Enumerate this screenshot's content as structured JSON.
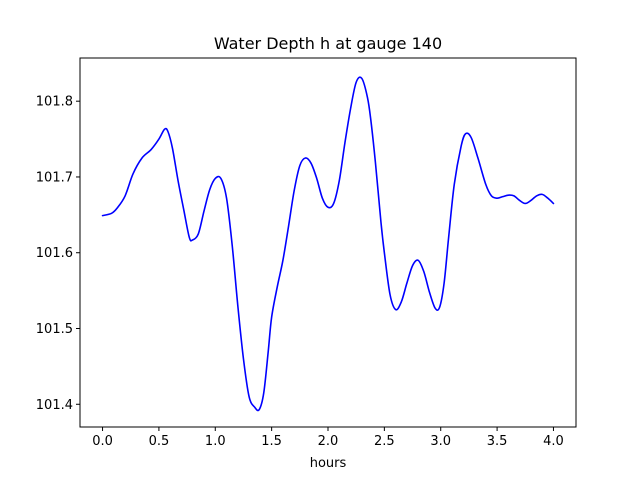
{
  "chart_data": {
    "type": "line",
    "title": "Water Depth h at gauge 140",
    "xlabel": "hours",
    "ylabel": "",
    "xlim": [
      -0.2,
      4.2
    ],
    "ylim": [
      101.37,
      101.857
    ],
    "xticks": [
      0.0,
      0.5,
      1.0,
      1.5,
      2.0,
      2.5,
      3.0,
      3.5,
      4.0
    ],
    "xtick_labels": [
      "0.0",
      "0.5",
      "1.0",
      "1.5",
      "2.0",
      "2.5",
      "3.0",
      "3.5",
      "4.0"
    ],
    "yticks": [
      101.4,
      101.5,
      101.6,
      101.7,
      101.8
    ],
    "ytick_labels": [
      "101.4",
      "101.5",
      "101.6",
      "101.7",
      "101.8"
    ],
    "grid": false,
    "line_color": "#0000ff",
    "series": [
      {
        "x": [
          0.0,
          0.08,
          0.13,
          0.2,
          0.27,
          0.35,
          0.43,
          0.5,
          0.55,
          0.58,
          0.62,
          0.67,
          0.72,
          0.77,
          0.8,
          0.85,
          0.9,
          0.95,
          1.0,
          1.05,
          1.1,
          1.15,
          1.2,
          1.25,
          1.3,
          1.35,
          1.39,
          1.43,
          1.47,
          1.5,
          1.55,
          1.6,
          1.65,
          1.7,
          1.75,
          1.8,
          1.85,
          1.9,
          1.95,
          2.0,
          2.05,
          2.1,
          2.15,
          2.2,
          2.25,
          2.3,
          2.35,
          2.38,
          2.42,
          2.47,
          2.5,
          2.55,
          2.6,
          2.65,
          2.7,
          2.75,
          2.8,
          2.85,
          2.9,
          2.95,
          2.99,
          3.03,
          3.07,
          3.12,
          3.18,
          3.22,
          3.27,
          3.33,
          3.4,
          3.45,
          3.5,
          3.55,
          3.6,
          3.65,
          3.7,
          3.75,
          3.8,
          3.85,
          3.9,
          3.95,
          4.0
        ],
        "y": [
          101.649,
          101.652,
          101.659,
          101.675,
          101.704,
          101.725,
          101.736,
          101.75,
          101.763,
          101.76,
          101.738,
          101.695,
          101.657,
          101.62,
          101.617,
          101.625,
          101.655,
          101.683,
          101.698,
          101.698,
          101.672,
          101.61,
          101.53,
          101.46,
          101.41,
          101.396,
          101.393,
          101.415,
          101.47,
          101.515,
          101.555,
          101.59,
          101.635,
          101.682,
          101.715,
          101.725,
          101.718,
          101.698,
          101.672,
          101.66,
          101.665,
          101.695,
          101.745,
          101.79,
          101.825,
          101.83,
          101.805,
          101.775,
          101.72,
          101.64,
          101.6,
          101.545,
          101.525,
          101.535,
          101.56,
          101.583,
          101.59,
          101.575,
          101.548,
          101.527,
          101.528,
          101.56,
          101.62,
          101.69,
          101.74,
          101.757,
          101.752,
          101.725,
          101.69,
          101.675,
          101.672,
          101.674,
          101.676,
          101.675,
          101.669,
          101.665,
          101.669,
          101.675,
          101.677,
          101.672,
          101.665
        ]
      }
    ]
  }
}
